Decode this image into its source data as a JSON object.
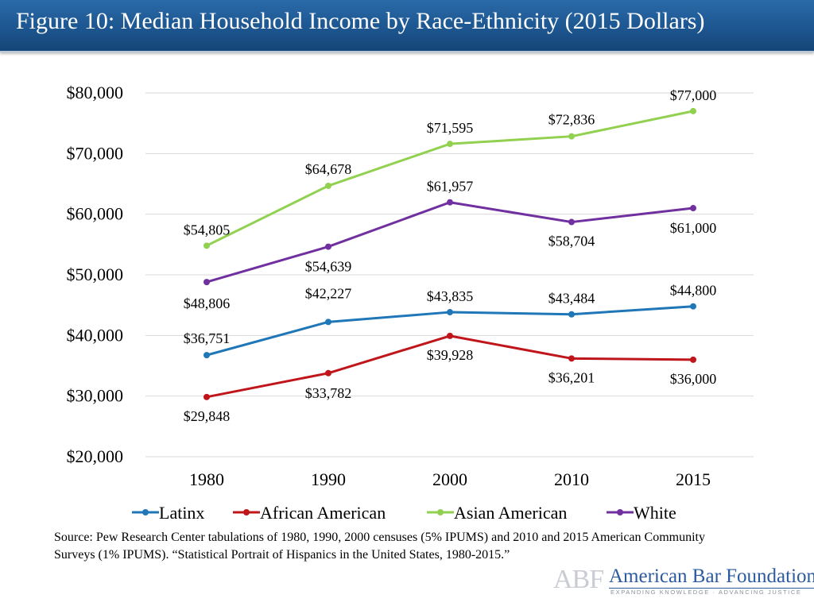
{
  "header": {
    "title": "Figure 10: Median Household Income by Race-Ethnicity (2015 Dollars)"
  },
  "chart_data": {
    "type": "line",
    "title": "Figure 10: Median Household Income by Race-Ethnicity (2015 Dollars)",
    "xlabel": "",
    "ylabel": "",
    "categories": [
      "1980",
      "1990",
      "2000",
      "2010",
      "2015"
    ],
    "y_ticks": [
      "$20,000",
      "$30,000",
      "$40,000",
      "$50,000",
      "$60,000",
      "$70,000",
      "$80,000"
    ],
    "ylim": [
      20000,
      80000
    ],
    "grid": true,
    "legend_position": "bottom",
    "series": [
      {
        "name": "Latinx",
        "color": "#1f77b8",
        "values": [
          36751,
          42227,
          43835,
          43484,
          44800
        ],
        "labels": [
          "$36,751",
          "$42,227",
          "$43,835",
          "$43,484",
          "$44,800"
        ]
      },
      {
        "name": "African American",
        "color": "#c0161b",
        "values": [
          29848,
          33782,
          39928,
          36201,
          36000
        ],
        "labels": [
          "$29,848",
          "$33,782",
          "$39,928",
          "$36,201",
          "$36,000"
        ]
      },
      {
        "name": "Asian American",
        "color": "#92d050",
        "values": [
          54805,
          64678,
          71595,
          72836,
          77000
        ],
        "labels": [
          "$54,805",
          "$64,678",
          "$71,595",
          "$72,836",
          "$77,000"
        ]
      },
      {
        "name": "White",
        "color": "#7030a0",
        "values": [
          48806,
          54639,
          61957,
          58704,
          61000
        ],
        "labels": [
          "$48,806",
          "$54,639",
          "$61,957",
          "$58,704",
          "$61,000"
        ]
      }
    ]
  },
  "source": {
    "text": "Source: Pew Research Center tabulations of 1980, 1990, 2000 censuses (5% IPUMS) and 2010 and 2015 American Community Surveys (1% IPUMS). “Statistical Portrait of Hispanics in the United States, 1980-2015.”"
  },
  "logo": {
    "initials": "ABF",
    "name": "American Bar Foundation",
    "tagline": "EXPANDING KNOWLEDGE · ADVANCING JUSTICE"
  }
}
